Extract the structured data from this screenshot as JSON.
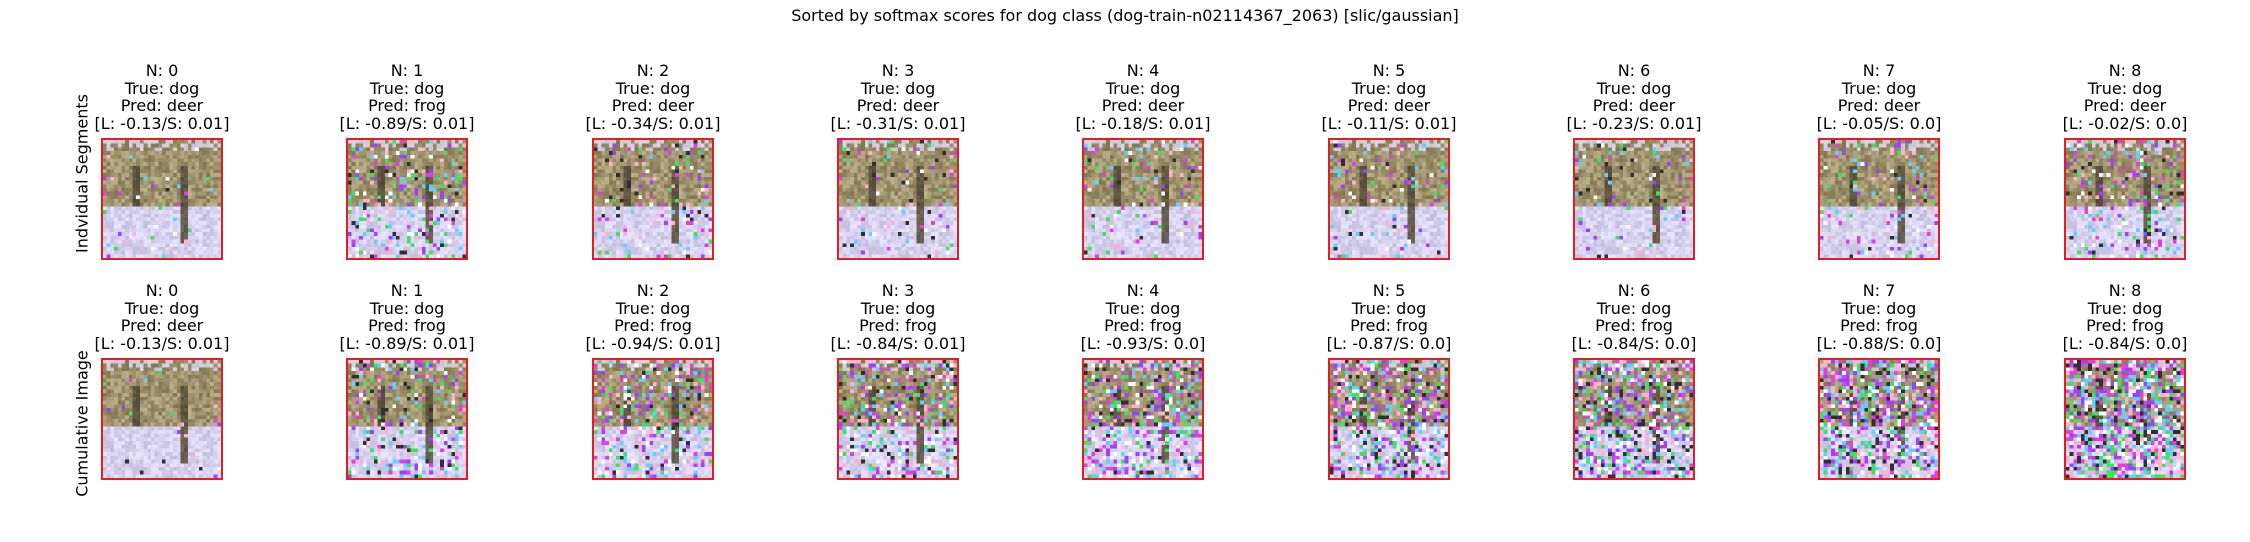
{
  "title": "Sorted by softmax scores for dog class (dog-train-n02114367_2063) [slic/gaussian]",
  "row_labels": [
    "Indvidual Segments",
    "Cumulative Image"
  ],
  "colors": {
    "frame": "#e02020",
    "sky": "#c9c4d9",
    "snow": "#e4e0f0",
    "tree": "#8a7b5c",
    "trunk": "#5e5040"
  },
  "rows": [
    {
      "name": "individual",
      "panels": [
        {
          "n": "N: 0",
          "true": "True: dog",
          "pred": "Pred: deer",
          "scores": "[L: -0.13/S: 0.01]",
          "noise": 0.02
        },
        {
          "n": "N: 1",
          "true": "True: dog",
          "pred": "Pred: frog",
          "scores": "[L: -0.89/S: 0.01]",
          "noise": 0.22
        },
        {
          "n": "N: 2",
          "true": "True: dog",
          "pred": "Pred: deer",
          "scores": "[L: -0.34/S: 0.01]",
          "noise": 0.12
        },
        {
          "n": "N: 3",
          "true": "True: dog",
          "pred": "Pred: deer",
          "scores": "[L: -0.31/S: 0.01]",
          "noise": 0.1
        },
        {
          "n": "N: 4",
          "true": "True: dog",
          "pred": "Pred: deer",
          "scores": "[L: -0.18/S: 0.01]",
          "noise": 0.1
        },
        {
          "n": "N: 5",
          "true": "True: dog",
          "pred": "Pred: deer",
          "scores": "[L: -0.11/S: 0.01]",
          "noise": 0.1
        },
        {
          "n": "N: 6",
          "true": "True: dog",
          "pred": "Pred: deer",
          "scores": "[L: -0.23/S: 0.01]",
          "noise": 0.08
        },
        {
          "n": "N: 7",
          "true": "True: dog",
          "pred": "Pred: deer",
          "scores": "[L: -0.05/S: 0.0]",
          "noise": 0.1
        },
        {
          "n": "N: 8",
          "true": "True: dog",
          "pred": "Pred: deer",
          "scores": "[L: -0.02/S: 0.0]",
          "noise": 0.18
        }
      ]
    },
    {
      "name": "cumulative",
      "panels": [
        {
          "n": "N: 0",
          "true": "True: dog",
          "pred": "Pred: deer",
          "scores": "[L: -0.13/S: 0.01]",
          "noise": 0.02
        },
        {
          "n": "N: 1",
          "true": "True: dog",
          "pred": "Pred: frog",
          "scores": "[L: -0.89/S: 0.01]",
          "noise": 0.22
        },
        {
          "n": "N: 2",
          "true": "True: dog",
          "pred": "Pred: frog",
          "scores": "[L: -0.94/S: 0.01]",
          "noise": 0.28
        },
        {
          "n": "N: 3",
          "true": "True: dog",
          "pred": "Pred: frog",
          "scores": "[L: -0.84/S: 0.01]",
          "noise": 0.32
        },
        {
          "n": "N: 4",
          "true": "True: dog",
          "pred": "Pred: frog",
          "scores": "[L: -0.93/S: 0.0]",
          "noise": 0.38
        },
        {
          "n": "N: 5",
          "true": "True: dog",
          "pred": "Pred: frog",
          "scores": "[L: -0.87/S: 0.0]",
          "noise": 0.44
        },
        {
          "n": "N: 6",
          "true": "True: dog",
          "pred": "Pred: frog",
          "scores": "[L: -0.84/S: 0.0]",
          "noise": 0.5
        },
        {
          "n": "N: 7",
          "true": "True: dog",
          "pred": "Pred: frog",
          "scores": "[L: -0.88/S: 0.0]",
          "noise": 0.56
        },
        {
          "n": "N: 8",
          "true": "True: dog",
          "pred": "Pred: frog",
          "scores": "[L: -0.84/S: 0.0]",
          "noise": 0.7
        }
      ]
    }
  ]
}
